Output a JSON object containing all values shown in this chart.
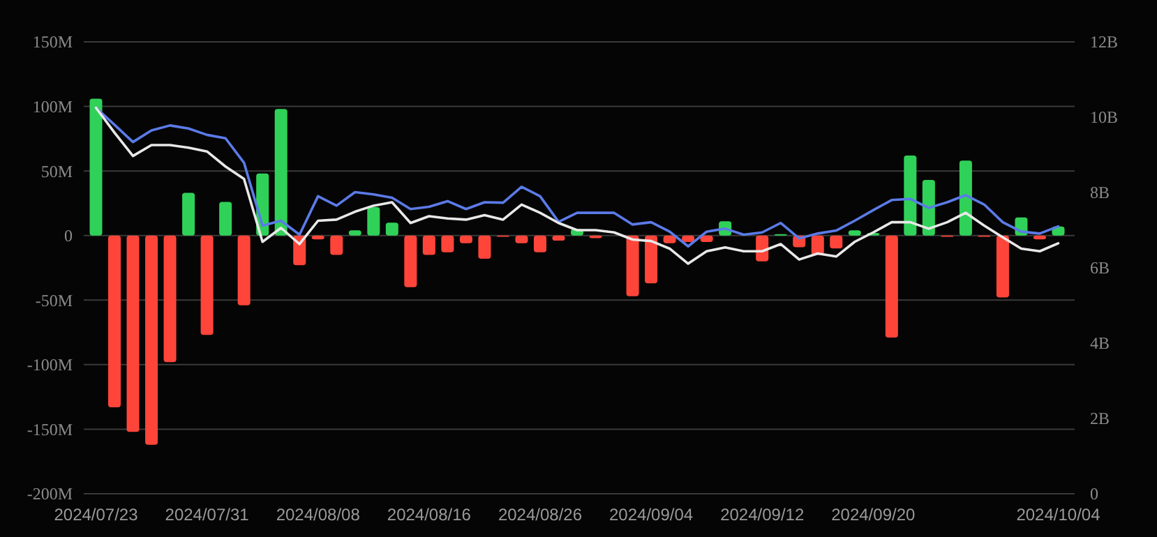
{
  "chart_data": {
    "type": "bar",
    "categories": [
      "2024/07/23",
      null,
      null,
      null,
      null,
      null,
      "2024/07/31",
      null,
      null,
      null,
      null,
      null,
      "2024/08/08",
      null,
      null,
      null,
      null,
      null,
      "2024/08/16",
      null,
      null,
      null,
      null,
      null,
      "2024/08/26",
      null,
      null,
      null,
      null,
      null,
      "2024/09/04",
      null,
      null,
      null,
      null,
      null,
      "2024/09/12",
      null,
      null,
      null,
      null,
      null,
      "2024/09/20",
      null,
      null,
      null,
      null,
      null,
      null,
      null,
      null,
      null,
      "2024/10/04"
    ],
    "series": [
      {
        "values": [
          106,
          -133,
          -152,
          -162,
          -98,
          33,
          -77,
          26,
          -54,
          48,
          98,
          -23,
          -3,
          -15,
          4,
          22,
          10,
          -40,
          -15,
          -13,
          -6,
          -18,
          -1,
          -6,
          -13,
          -4,
          5,
          -2,
          0,
          -47,
          -37,
          -6,
          -5,
          -5,
          11,
          0,
          -20,
          1,
          -9,
          -15,
          -10,
          4,
          2,
          -79,
          62,
          43,
          -1,
          58,
          -1,
          -48,
          14,
          -3,
          7
        ],
        "colors": [
          "#30d158",
          "#ff453a",
          "#ff453a",
          "#ff453a",
          "#ff453a",
          "#30d158",
          "#ff453a",
          "#30d158",
          "#ff453a",
          "#30d158",
          "#30d158",
          "#ff453a",
          "#ff453a",
          "#ff453a",
          "#30d158",
          "#30d158",
          "#30d158",
          "#ff453a",
          "#ff453a",
          "#ff453a",
          "#ff453a",
          "#ff453a",
          "#ff453a",
          "#ff453a",
          "#ff453a",
          "#ff453a",
          "#30d158",
          "#ff453a",
          "#ff453a",
          "#ff453a",
          "#ff453a",
          "#ff453a",
          "#ff453a",
          "#ff453a",
          "#30d158",
          "#30d158",
          "#ff453a",
          "#30d158",
          "#ff453a",
          "#ff453a",
          "#ff453a",
          "#30d158",
          "#30d158",
          "#ff453a",
          "#30d158",
          "#30d158",
          "#ff453a",
          "#30d158",
          "#ff453a",
          "#ff453a",
          "#30d158",
          "#ff453a",
          "#30d158"
        ]
      },
      {
        "type": "line",
        "axis": "y2",
        "color": "#5b7be8",
        "values": [
          10.25,
          9.8,
          9.34,
          9.65,
          9.78,
          9.7,
          9.53,
          9.44,
          8.79,
          7.12,
          7.25,
          6.88,
          7.9,
          7.65,
          8.01,
          7.95,
          7.86,
          7.56,
          7.62,
          7.77,
          7.56,
          7.74,
          7.73,
          8.15,
          7.9,
          7.22,
          7.46,
          7.46,
          7.46,
          7.15,
          7.21,
          6.96,
          6.57,
          6.96,
          7.04,
          6.88,
          6.94,
          7.19,
          6.78,
          6.91,
          6.99,
          7.25,
          7.53,
          7.8,
          7.83,
          7.59,
          7.74,
          7.93,
          7.68,
          7.21,
          6.96,
          6.91,
          7.1
        ]
      },
      {
        "type": "line",
        "axis": "y2",
        "color": "#e8e8e8",
        "values": [
          10.25,
          9.59,
          8.97,
          9.26,
          9.26,
          9.19,
          9.09,
          8.69,
          8.36,
          6.69,
          7.06,
          6.63,
          7.25,
          7.28,
          7.49,
          7.65,
          7.74,
          7.19,
          7.37,
          7.31,
          7.28,
          7.4,
          7.28,
          7.68,
          7.46,
          7.19,
          7.0,
          7.0,
          6.94,
          6.75,
          6.71,
          6.51,
          6.11,
          6.44,
          6.54,
          6.44,
          6.44,
          6.63,
          6.22,
          6.38,
          6.3,
          6.69,
          6.94,
          7.21,
          7.21,
          7.04,
          7.21,
          7.46,
          7.12,
          6.81,
          6.51,
          6.44,
          6.65
        ]
      }
    ],
    "ylim": [
      -200,
      150
    ],
    "yticks": [
      {
        "value": -200,
        "label": "-200M"
      },
      {
        "value": -150,
        "label": "-150M"
      },
      {
        "value": -100,
        "label": "-100M"
      },
      {
        "value": -50,
        "label": "-50M"
      },
      0,
      {
        "value": 50,
        "label": "50M"
      },
      {
        "value": 100,
        "label": "100M"
      },
      {
        "value": 150,
        "label": "150M"
      }
    ],
    "y2lim": [
      0,
      12
    ],
    "y2ticks": [
      0,
      {
        "value": 2,
        "label": "2B"
      },
      {
        "value": 4,
        "label": "4B"
      },
      {
        "value": 6,
        "label": "6B"
      },
      {
        "value": 8,
        "label": "8B"
      },
      {
        "value": 10,
        "label": "10B"
      },
      {
        "value": 12,
        "label": "12B"
      }
    ],
    "grid": "y"
  }
}
